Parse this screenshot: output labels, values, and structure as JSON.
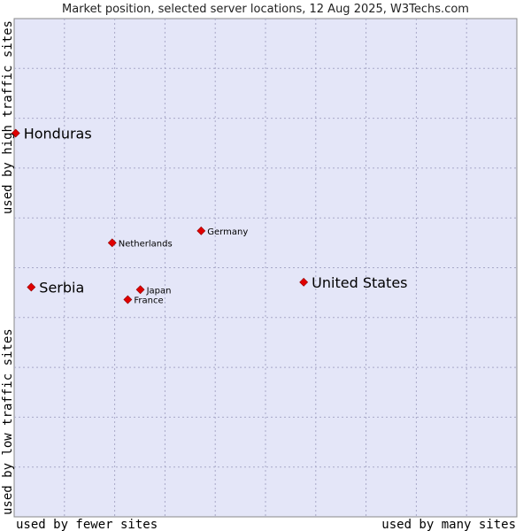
{
  "chart_data": {
    "type": "scatter",
    "title": "Market position, selected server locations, 12 Aug 2025, W3Techs.com",
    "xlabel_left": "used by fewer sites",
    "xlabel_right": "used by many sites",
    "ylabel_bottom": "used by low traffic sites",
    "ylabel_top": "used by high traffic sites",
    "xlim": [
      0,
      100
    ],
    "ylim": [
      0,
      100
    ],
    "grid": true,
    "colors": {
      "plot_bg": "#e4e6f8",
      "grid": "#a8a8c8",
      "point": "#e00000",
      "point_stroke": "#900000"
    },
    "points": [
      {
        "label": "Honduras",
        "x": 0.3,
        "y": 77.0,
        "size": "large",
        "label_side": "right"
      },
      {
        "label": "Germany",
        "x": 37.2,
        "y": 57.4,
        "size": "small",
        "label_side": "right"
      },
      {
        "label": "Netherlands",
        "x": 19.5,
        "y": 55.0,
        "size": "small",
        "label_side": "right"
      },
      {
        "label": "United States",
        "x": 57.6,
        "y": 47.1,
        "size": "large",
        "label_side": "right"
      },
      {
        "label": "Serbia",
        "x": 3.4,
        "y": 46.1,
        "size": "large",
        "label_side": "right"
      },
      {
        "label": "Japan",
        "x": 25.1,
        "y": 45.6,
        "size": "small",
        "label_side": "right"
      },
      {
        "label": "France",
        "x": 22.6,
        "y": 43.6,
        "size": "small",
        "label_side": "right"
      }
    ]
  }
}
